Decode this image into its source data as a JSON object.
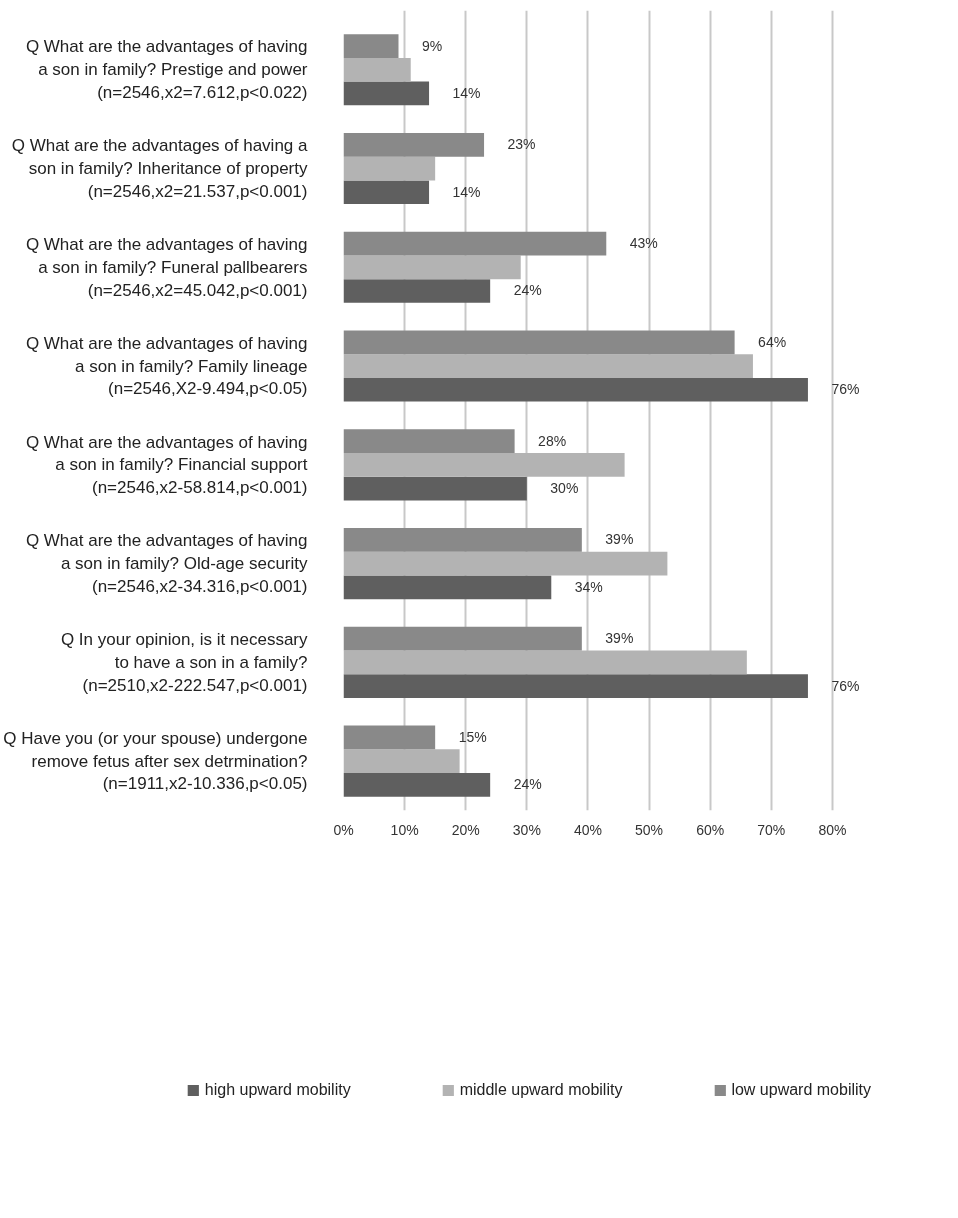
{
  "chart_data": {
    "type": "bar",
    "orientation": "horizontal",
    "categories": [
      "Q What are the advantages of having\na son in family? Prestige and power\n(n=2546,x2=7.612,p<0.022)",
      "Q What are the advantages of having a\nson in family? Inheritance of property\n(n=2546,x2=21.537,p<0.001)",
      "Q What are the advantages of having\na son in family? Funeral pallbearers\n(n=2546,x2=45.042,p<0.001)",
      "Q What are the advantages of having\na son in family? Family lineage\n(n=2546,X2-9.494,p<0.05)",
      "Q What are the advantages of having\na son in family? Financial support\n(n=2546,x2-58.814,p<0.001)",
      "Q What are the advantages of having\na son in family? Old-age security\n(n=2546,x2-34.316,p<0.001)",
      "Q In your opinion, is it necessary\nto have a son in a family?\n(n=2510,x2-222.547,p<0.001)",
      "Q Have you (or your spouse) undergone\nremove fetus after sex detrmination?\n(n=1911,x2-10.336,p<0.05)"
    ],
    "series": [
      {
        "name": "high upward mobility",
        "color": "#5f5f5f",
        "values": [
          14,
          14,
          24,
          76,
          30,
          34,
          76,
          24
        ],
        "value_labels": [
          "14%",
          "14%",
          "24%",
          "76%",
          "30%",
          "34%",
          "76%",
          "24%"
        ]
      },
      {
        "name": "middle upward mobility",
        "color": "#b3b3b3",
        "values": [
          11,
          15,
          29,
          67,
          46,
          53,
          66,
          19
        ]
      },
      {
        "name": "low upward mobility",
        "color": "#898989",
        "values": [
          9,
          23,
          43,
          64,
          28,
          39,
          39,
          15
        ],
        "value_labels": [
          "9%",
          "23%",
          "43%",
          "64%",
          "28%",
          "39%",
          "39%",
          "15%"
        ]
      }
    ],
    "xlim": [
      0,
      80
    ],
    "xticks": [
      {
        "value": 0,
        "label": "0%"
      },
      {
        "value": 10,
        "label": "10%"
      },
      {
        "value": 20,
        "label": "20%"
      },
      {
        "value": 30,
        "label": "30%"
      },
      {
        "value": 40,
        "label": "40%"
      },
      {
        "value": 50,
        "label": "50%"
      },
      {
        "value": 60,
        "label": "60%"
      },
      {
        "value": 70,
        "label": "70%"
      },
      {
        "value": 80,
        "label": "80%"
      }
    ],
    "grid": "x",
    "legend": "bottom"
  }
}
